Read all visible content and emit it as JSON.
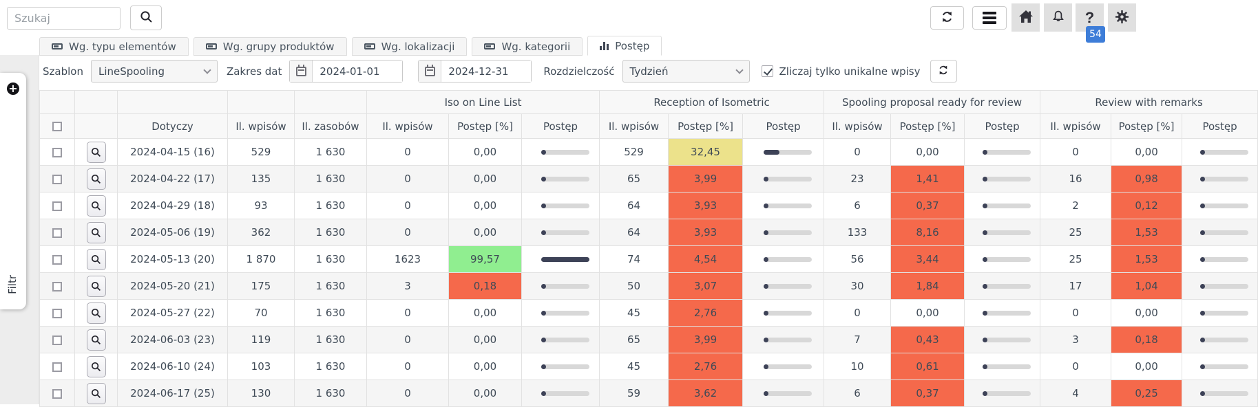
{
  "topbar": {
    "search": {
      "placeholder": "Szukaj"
    },
    "badge_count": "54"
  },
  "tabs": [
    {
      "label": "Wg. typu elementów",
      "active": false
    },
    {
      "label": "Wg. grupy produktów",
      "active": false
    },
    {
      "label": "Wg. lokalizacji",
      "active": false
    },
    {
      "label": "Wg. kategorii",
      "active": false
    },
    {
      "label": "Postęp",
      "active": true
    }
  ],
  "filters": {
    "template_label": "Szablon",
    "template_value": "LineSpooling",
    "date_range_label": "Zakres dat",
    "date_from": "2024-01-01",
    "date_to": "2024-12-31",
    "resolution_label": "Rozdzielczość",
    "resolution_value": "Tydzień",
    "unique_checkbox_label": "Zliczaj tylko unikalne wpisy",
    "unique_checked": true
  },
  "sidebar": {
    "filter_label": "Filtr"
  },
  "table": {
    "group_headers": [
      "Iso on Line List",
      "Reception of Isometric",
      "Spooling proposal ready for review",
      "Review with remarks"
    ],
    "columns": {
      "dotyczy": "Dotyczy",
      "entries": "Il. wpisów",
      "resources": "Il. zasobów",
      "pct": "Postęp [%]",
      "progress": "Postęp"
    },
    "rows": [
      {
        "date": "2024-04-15 (16)",
        "entries": "529",
        "resources": "1 630",
        "groups": [
          {
            "entries": "0",
            "pct": "0,00",
            "value": 0,
            "bg": "white"
          },
          {
            "entries": "529",
            "pct": "32,45",
            "value": 32.45,
            "bg": "yellow"
          },
          {
            "entries": "0",
            "pct": "0,00",
            "value": 0,
            "bg": "white"
          },
          {
            "entries": "0",
            "pct": "0,00",
            "value": 0,
            "bg": "white"
          }
        ]
      },
      {
        "date": "2024-04-22 (17)",
        "entries": "135",
        "resources": "1 630",
        "groups": [
          {
            "entries": "0",
            "pct": "0,00",
            "value": 0,
            "bg": "white"
          },
          {
            "entries": "65",
            "pct": "3,99",
            "value": 3.99,
            "bg": "red"
          },
          {
            "entries": "23",
            "pct": "1,41",
            "value": 1.41,
            "bg": "red"
          },
          {
            "entries": "16",
            "pct": "0,98",
            "value": 0.98,
            "bg": "red"
          }
        ]
      },
      {
        "date": "2024-04-29 (18)",
        "entries": "93",
        "resources": "1 630",
        "groups": [
          {
            "entries": "0",
            "pct": "0,00",
            "value": 0,
            "bg": "white"
          },
          {
            "entries": "64",
            "pct": "3,93",
            "value": 3.93,
            "bg": "red"
          },
          {
            "entries": "6",
            "pct": "0,37",
            "value": 0.37,
            "bg": "red"
          },
          {
            "entries": "2",
            "pct": "0,12",
            "value": 0.12,
            "bg": "red"
          }
        ]
      },
      {
        "date": "2024-05-06 (19)",
        "entries": "362",
        "resources": "1 630",
        "groups": [
          {
            "entries": "0",
            "pct": "0,00",
            "value": 0,
            "bg": "white"
          },
          {
            "entries": "64",
            "pct": "3,93",
            "value": 3.93,
            "bg": "red"
          },
          {
            "entries": "133",
            "pct": "8,16",
            "value": 8.16,
            "bg": "red"
          },
          {
            "entries": "25",
            "pct": "1,53",
            "value": 1.53,
            "bg": "red"
          }
        ]
      },
      {
        "date": "2024-05-13 (20)",
        "entries": "1 870",
        "resources": "1 630",
        "groups": [
          {
            "entries": "1623",
            "pct": "99,57",
            "value": 99.57,
            "bg": "green"
          },
          {
            "entries": "74",
            "pct": "4,54",
            "value": 4.54,
            "bg": "red"
          },
          {
            "entries": "56",
            "pct": "3,44",
            "value": 3.44,
            "bg": "red"
          },
          {
            "entries": "25",
            "pct": "1,53",
            "value": 1.53,
            "bg": "red"
          }
        ]
      },
      {
        "date": "2024-05-20 (21)",
        "entries": "175",
        "resources": "1 630",
        "groups": [
          {
            "entries": "3",
            "pct": "0,18",
            "value": 0.18,
            "bg": "red"
          },
          {
            "entries": "50",
            "pct": "3,07",
            "value": 3.07,
            "bg": "red"
          },
          {
            "entries": "30",
            "pct": "1,84",
            "value": 1.84,
            "bg": "red"
          },
          {
            "entries": "17",
            "pct": "1,04",
            "value": 1.04,
            "bg": "red"
          }
        ]
      },
      {
        "date": "2024-05-27 (22)",
        "entries": "70",
        "resources": "1 630",
        "groups": [
          {
            "entries": "0",
            "pct": "0,00",
            "value": 0,
            "bg": "white"
          },
          {
            "entries": "45",
            "pct": "2,76",
            "value": 2.76,
            "bg": "red"
          },
          {
            "entries": "0",
            "pct": "0,00",
            "value": 0,
            "bg": "white"
          },
          {
            "entries": "0",
            "pct": "0,00",
            "value": 0,
            "bg": "white"
          }
        ]
      },
      {
        "date": "2024-06-03 (23)",
        "entries": "119",
        "resources": "1 630",
        "groups": [
          {
            "entries": "0",
            "pct": "0,00",
            "value": 0,
            "bg": "white"
          },
          {
            "entries": "65",
            "pct": "3,99",
            "value": 3.99,
            "bg": "red"
          },
          {
            "entries": "7",
            "pct": "0,43",
            "value": 0.43,
            "bg": "red"
          },
          {
            "entries": "3",
            "pct": "0,18",
            "value": 0.18,
            "bg": "red"
          }
        ]
      },
      {
        "date": "2024-06-10 (24)",
        "entries": "103",
        "resources": "1 630",
        "groups": [
          {
            "entries": "0",
            "pct": "0,00",
            "value": 0,
            "bg": "white"
          },
          {
            "entries": "45",
            "pct": "2,76",
            "value": 2.76,
            "bg": "red"
          },
          {
            "entries": "10",
            "pct": "0,61",
            "value": 0.61,
            "bg": "red"
          },
          {
            "entries": "0",
            "pct": "0,00",
            "value": 0,
            "bg": "white"
          }
        ]
      },
      {
        "date": "2024-06-17 (25)",
        "entries": "130",
        "resources": "1 630",
        "groups": [
          {
            "entries": "0",
            "pct": "0,00",
            "value": 0,
            "bg": "white"
          },
          {
            "entries": "59",
            "pct": "3,62",
            "value": 3.62,
            "bg": "red"
          },
          {
            "entries": "6",
            "pct": "0,37",
            "value": 0.37,
            "bg": "red"
          },
          {
            "entries": "4",
            "pct": "0,25",
            "value": 0.25,
            "bg": "red"
          }
        ]
      }
    ]
  },
  "colors": {
    "red_cell": "#f5694b",
    "yellow_cell": "#ece28b",
    "green_cell": "#90ee90",
    "badge_blue": "#3d7dd8",
    "bar_fill": "#3d4257",
    "bar_track": "#d8d8d8",
    "bottom_accent": "#2eb398"
  }
}
